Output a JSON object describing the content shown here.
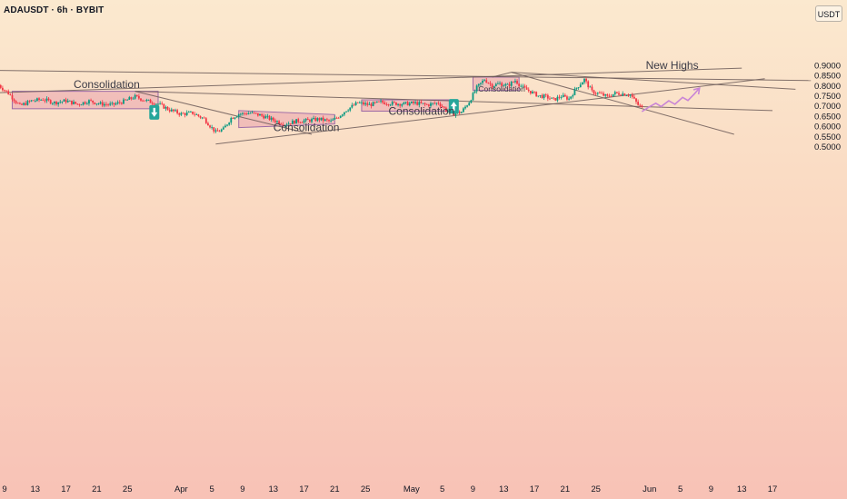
{
  "header": {
    "symbol_label": "ADAUSDT · 6h · BYBIT",
    "currency_badge": "USDT"
  },
  "chart_data": {
    "type": "candlestick",
    "title": "ADAUSDT · 6h · BYBIT",
    "ylim": [
      0.5,
      0.92
    ],
    "y_ticks": [
      "0.9000",
      "0.8500",
      "0.8000",
      "0.7500",
      "0.7000",
      "0.6500",
      "0.6000",
      "0.5500",
      "0.5000"
    ],
    "y_tick_values": [
      0.9,
      0.85,
      0.8,
      0.75,
      0.7,
      0.65,
      0.6,
      0.55,
      0.5
    ],
    "x_ticks": [
      "9",
      "13",
      "17",
      "21",
      "25",
      "Apr",
      "5",
      "9",
      "13",
      "17",
      "21",
      "25",
      "May",
      "5",
      "9",
      "13",
      "17",
      "21",
      "25",
      "Jun",
      "5",
      "9",
      "13",
      "17"
    ],
    "x_tick_days": [
      9,
      13,
      17,
      21,
      25,
      32,
      36,
      40,
      44,
      48,
      52,
      56,
      62,
      66,
      70,
      74,
      78,
      82,
      86,
      93,
      97,
      101,
      105,
      109
    ],
    "grid": false,
    "colors": {
      "up": "#089981",
      "down": "#f23645",
      "line": "#6b5a58",
      "box_fill": "#e9a3ad",
      "box_stroke": "#9c6aa6",
      "projection": "#c985d6",
      "marker_bg": "#26a69a"
    },
    "closes": [
      {
        "day": 8.0,
        "close": 0.81
      },
      {
        "day": 9.5,
        "close": 0.762
      },
      {
        "day": 11.0,
        "close": 0.7
      },
      {
        "day": 12.5,
        "close": 0.725
      },
      {
        "day": 14.0,
        "close": 0.732
      },
      {
        "day": 15.5,
        "close": 0.716
      },
      {
        "day": 17.0,
        "close": 0.725
      },
      {
        "day": 18.5,
        "close": 0.708
      },
      {
        "day": 20.0,
        "close": 0.724
      },
      {
        "day": 21.5,
        "close": 0.71
      },
      {
        "day": 23.0,
        "close": 0.705
      },
      {
        "day": 24.5,
        "close": 0.722
      },
      {
        "day": 26.0,
        "close": 0.745
      },
      {
        "day": 27.5,
        "close": 0.725
      },
      {
        "day": 29.0,
        "close": 0.71
      },
      {
        "day": 30.5,
        "close": 0.68
      },
      {
        "day": 32.0,
        "close": 0.66
      },
      {
        "day": 33.5,
        "close": 0.665
      },
      {
        "day": 35.0,
        "close": 0.636
      },
      {
        "day": 35.8,
        "close": 0.6
      },
      {
        "day": 36.5,
        "close": 0.57
      },
      {
        "day": 37.5,
        "close": 0.585
      },
      {
        "day": 38.5,
        "close": 0.64
      },
      {
        "day": 39.5,
        "close": 0.66
      },
      {
        "day": 41.0,
        "close": 0.665
      },
      {
        "day": 42.5,
        "close": 0.652
      },
      {
        "day": 44.0,
        "close": 0.63
      },
      {
        "day": 45.5,
        "close": 0.61
      },
      {
        "day": 47.0,
        "close": 0.625
      },
      {
        "day": 48.5,
        "close": 0.628
      },
      {
        "day": 50.0,
        "close": 0.635
      },
      {
        "day": 51.5,
        "close": 0.623
      },
      {
        "day": 52.5,
        "close": 0.648
      },
      {
        "day": 53.5,
        "close": 0.68
      },
      {
        "day": 55.0,
        "close": 0.715
      },
      {
        "day": 56.5,
        "close": 0.705
      },
      {
        "day": 58.0,
        "close": 0.718
      },
      {
        "day": 59.5,
        "close": 0.712
      },
      {
        "day": 61.0,
        "close": 0.71
      },
      {
        "day": 62.5,
        "close": 0.714
      },
      {
        "day": 64.0,
        "close": 0.705
      },
      {
        "day": 65.5,
        "close": 0.715
      },
      {
        "day": 66.5,
        "close": 0.68
      },
      {
        "day": 67.5,
        "close": 0.662
      },
      {
        "day": 68.5,
        "close": 0.67
      },
      {
        "day": 69.5,
        "close": 0.72
      },
      {
        "day": 70.5,
        "close": 0.79
      },
      {
        "day": 71.5,
        "close": 0.83
      },
      {
        "day": 72.5,
        "close": 0.8
      },
      {
        "day": 73.5,
        "close": 0.81
      },
      {
        "day": 74.5,
        "close": 0.8
      },
      {
        "day": 75.5,
        "close": 0.825
      },
      {
        "day": 76.5,
        "close": 0.79
      },
      {
        "day": 77.5,
        "close": 0.77
      },
      {
        "day": 78.5,
        "close": 0.75
      },
      {
        "day": 79.5,
        "close": 0.745
      },
      {
        "day": 80.5,
        "close": 0.73
      },
      {
        "day": 81.5,
        "close": 0.748
      },
      {
        "day": 82.5,
        "close": 0.735
      },
      {
        "day": 83.5,
        "close": 0.79
      },
      {
        "day": 84.5,
        "close": 0.83
      },
      {
        "day": 85.5,
        "close": 0.77
      },
      {
        "day": 86.5,
        "close": 0.76
      },
      {
        "day": 87.5,
        "close": 0.745
      },
      {
        "day": 88.5,
        "close": 0.762
      },
      {
        "day": 89.5,
        "close": 0.76
      },
      {
        "day": 90.5,
        "close": 0.755
      },
      {
        "day": 91.5,
        "close": 0.705
      },
      {
        "day": 92.0,
        "close": 0.69
      }
    ],
    "annotations": {
      "new_highs": "New Highs",
      "consolidation_1": "Consolidation",
      "consolidation_2": "Consolidation",
      "consolidation_3": "Consolidation",
      "consolidation_4": "Consolidation"
    },
    "zones": [
      {
        "name": "consolidation-zone-1",
        "day_from": 10.0,
        "day_to": 29.0,
        "price_top": 0.772,
        "price_bottom": 0.686
      },
      {
        "name": "consolidation-zone-2",
        "day_from": 55.5,
        "day_to": 67.5,
        "price_top": 0.73,
        "price_bottom": 0.674
      },
      {
        "name": "consolidation-zone-3",
        "day_from": 70.0,
        "day_to": 76.0,
        "price_top": 0.842,
        "price_bottom": 0.776
      }
    ],
    "triangle": {
      "points": [
        [
          39.5,
          0.677
        ],
        [
          39.5,
          0.593
        ],
        [
          52.0,
          0.611
        ],
        [
          52.0,
          0.657
        ]
      ]
    },
    "trendlines": [
      {
        "name": "resistance-line-top",
        "from": [
          6,
          0.876
        ],
        "to": [
          114,
          0.825
        ]
      },
      {
        "name": "rising-wedge-line",
        "from": [
          6,
          0.762
        ],
        "to": [
          105,
          0.886
        ]
      },
      {
        "name": "falling-resistance-line",
        "from": [
          26,
          0.772
        ],
        "to": [
          109,
          0.677
        ]
      },
      {
        "name": "drop-line-left",
        "from": [
          26,
          0.772
        ],
        "to": [
          49,
          0.56
        ]
      },
      {
        "name": "support-line",
        "from": [
          36.5,
          0.512
        ],
        "to": [
          108,
          0.834
        ]
      },
      {
        "name": "peak-line-right",
        "from": [
          75,
          0.866
        ],
        "to": [
          112,
          0.782
        ]
      },
      {
        "name": "peak-line-down",
        "from": [
          75,
          0.866
        ],
        "to": [
          104,
          0.56
        ]
      },
      {
        "name": "peak-line-left",
        "from": [
          75,
          0.866
        ],
        "to": [
          72.5,
          0.842
        ]
      }
    ],
    "projection": [
      [
        92.0,
        0.672
      ],
      [
        93.0,
        0.696
      ],
      [
        93.8,
        0.713
      ],
      [
        94.5,
        0.697
      ],
      [
        95.5,
        0.725
      ],
      [
        96.3,
        0.708
      ],
      [
        97.3,
        0.742
      ],
      [
        98.0,
        0.727
      ],
      [
        98.8,
        0.758
      ],
      [
        99.5,
        0.788
      ]
    ]
  }
}
